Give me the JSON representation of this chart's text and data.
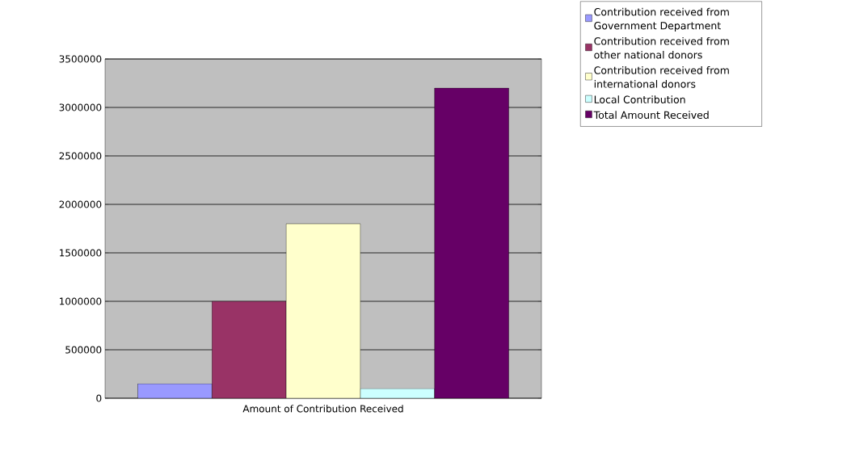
{
  "chart_data": {
    "type": "bar",
    "categories": [
      "Amount of Contribution Received"
    ],
    "series": [
      {
        "name": "Contribution received from Government Department",
        "color": "#9999ff",
        "values": [
          150000
        ]
      },
      {
        "name": "Contribution received from other national donors",
        "color": "#993366",
        "values": [
          1000000
        ]
      },
      {
        "name": "Contribution received from international donors",
        "color": "#ffffcc",
        "values": [
          1800000
        ]
      },
      {
        "name": "Local Contribution",
        "color": "#ccffff",
        "values": [
          100000
        ]
      },
      {
        "name": "Total Amount Received",
        "color": "#660066",
        "values": [
          3200000
        ]
      }
    ],
    "ylim": [
      0,
      3500000
    ],
    "yticks": [
      0,
      500000,
      1000000,
      1500000,
      2000000,
      2500000,
      3000000,
      3500000
    ],
    "grid": "y",
    "legend": "right"
  }
}
